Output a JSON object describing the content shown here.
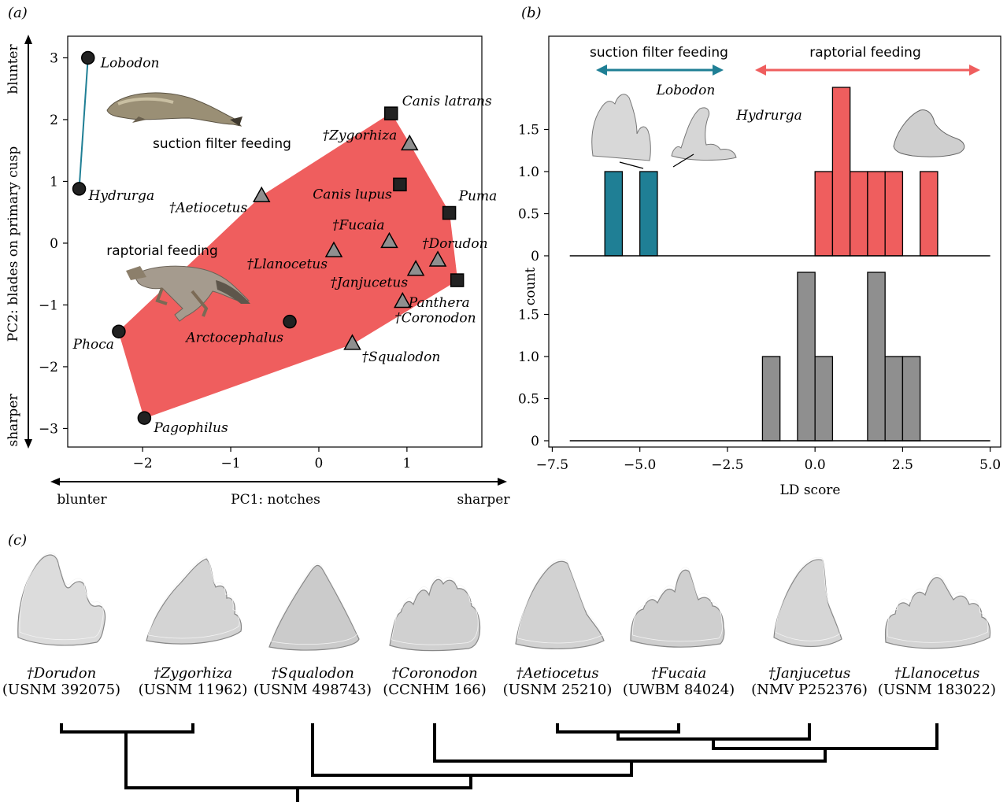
{
  "panel_labels": {
    "a": "(a)",
    "b": "(b)",
    "c": "(c)"
  },
  "colors": {
    "raptorial": "#ef5e5e",
    "suction": "#1f7f95",
    "gray": "#8f8f8f",
    "marker": "#222222"
  },
  "panel_a": {
    "ylabel": "PC2: blades on primary cusp",
    "xlabel": "PC1: notches",
    "y_top_word": "blunter",
    "y_bottom_word": "sharper",
    "x_left_word": "blunter",
    "x_right_word": "sharper",
    "suction_label": "suction filter feeding",
    "raptorial_label": "raptorial feeding"
  },
  "panel_b": {
    "ylabel": "count",
    "xlabel": "LD score",
    "suction_label": "suction filter feeding",
    "raptorial_label": "raptorial feeding",
    "lobodon_label": "Lobodon",
    "hydrurga_label": "Hydrurga"
  },
  "chart_data": [
    {
      "type": "scatter",
      "title": "",
      "xlabel": "PC1: notches",
      "ylabel": "PC2: blades on primary cusp",
      "xlim": [
        -2.85,
        1.85
      ],
      "ylim": [
        -3.3,
        3.35
      ],
      "xticks": [
        -2,
        -1,
        0,
        1
      ],
      "yticks": [
        -3,
        -2,
        -1,
        0,
        1,
        2,
        3
      ],
      "series": [
        {
          "marker": "circle",
          "points": [
            {
              "label": "Lobodon",
              "x": -2.62,
              "y": 3.0
            },
            {
              "label": "Hydrurga",
              "x": -2.72,
              "y": 0.88
            },
            {
              "label": "Phoca",
              "x": -2.27,
              "y": -1.43
            },
            {
              "label": "Pagophilus",
              "x": -1.98,
              "y": -2.83
            },
            {
              "label": "Arctocephalus",
              "x": -0.33,
              "y": -1.27
            }
          ]
        },
        {
          "marker": "square",
          "points": [
            {
              "label": "Canis latrans",
              "x": 0.82,
              "y": 2.1
            },
            {
              "label": "Canis lupus",
              "x": 0.92,
              "y": 0.95
            },
            {
              "label": "Puma",
              "x": 1.48,
              "y": 0.49
            },
            {
              "label": "Panthera",
              "x": 1.57,
              "y": -0.6
            }
          ]
        },
        {
          "marker": "triangle",
          "points": [
            {
              "label": "†Zygorhiza",
              "x": 1.03,
              "y": 1.6
            },
            {
              "label": "†Aetiocetus",
              "x": -0.65,
              "y": 0.76
            },
            {
              "label": "†Fucaia",
              "x": 0.8,
              "y": 0.02
            },
            {
              "label": "†Llanocetus",
              "x": 0.17,
              "y": -0.13
            },
            {
              "label": "†Dorudon",
              "x": 1.35,
              "y": -0.28
            },
            {
              "label": "†Janjucetus",
              "x": 1.1,
              "y": -0.43
            },
            {
              "label": "†Coronodon",
              "x": 0.95,
              "y": -0.95
            },
            {
              "label": "†Squalodon",
              "x": 0.38,
              "y": -1.63
            }
          ]
        }
      ]
    },
    {
      "type": "bar",
      "title": "",
      "xlabel": "LD score",
      "ylabel": "count",
      "xlim": [
        -7.6,
        5.3
      ],
      "xticks": [
        -7.5,
        -5.0,
        -2.5,
        0.0,
        2.5,
        5.0
      ],
      "yticks": [
        0,
        0.5,
        1.0,
        1.5
      ],
      "bin_width": 0.5,
      "top_histogram": {
        "suction": [
          {
            "x": -5.75,
            "count": 1
          },
          {
            "x": -4.75,
            "count": 1
          }
        ],
        "raptorial": [
          {
            "x": 0.25,
            "count": 1
          },
          {
            "x": 0.75,
            "count": 2
          },
          {
            "x": 1.25,
            "count": 1
          },
          {
            "x": 1.75,
            "count": 1
          },
          {
            "x": 2.25,
            "count": 1
          },
          {
            "x": 3.25,
            "count": 1
          }
        ]
      },
      "bottom_histogram": {
        "fossil": [
          {
            "x": -1.25,
            "count": 1
          },
          {
            "x": -0.25,
            "count": 2
          },
          {
            "x": 0.25,
            "count": 1
          },
          {
            "x": 1.75,
            "count": 2
          },
          {
            "x": 2.25,
            "count": 1
          },
          {
            "x": 2.75,
            "count": 1
          }
        ]
      }
    }
  ],
  "panel_c": {
    "teeth": [
      {
        "name": "†Dorudon",
        "specimen": "(USNM 392075)"
      },
      {
        "name": "†Zygorhiza",
        "specimen": "(USNM 11962)"
      },
      {
        "name": "†Squalodon",
        "specimen": "(USNM 498743)"
      },
      {
        "name": "†Coronodon",
        "specimen": "(CCNHM 166)"
      },
      {
        "name": "†Aetiocetus",
        "specimen": "(USNM 25210)"
      },
      {
        "name": "†Fucaia",
        "specimen": "(UWBM 84024)"
      },
      {
        "name": "†Janjucetus",
        "specimen": "(NMV P252376)"
      },
      {
        "name": "†Llanocetus",
        "specimen": "(USNM 183022)"
      }
    ]
  }
}
